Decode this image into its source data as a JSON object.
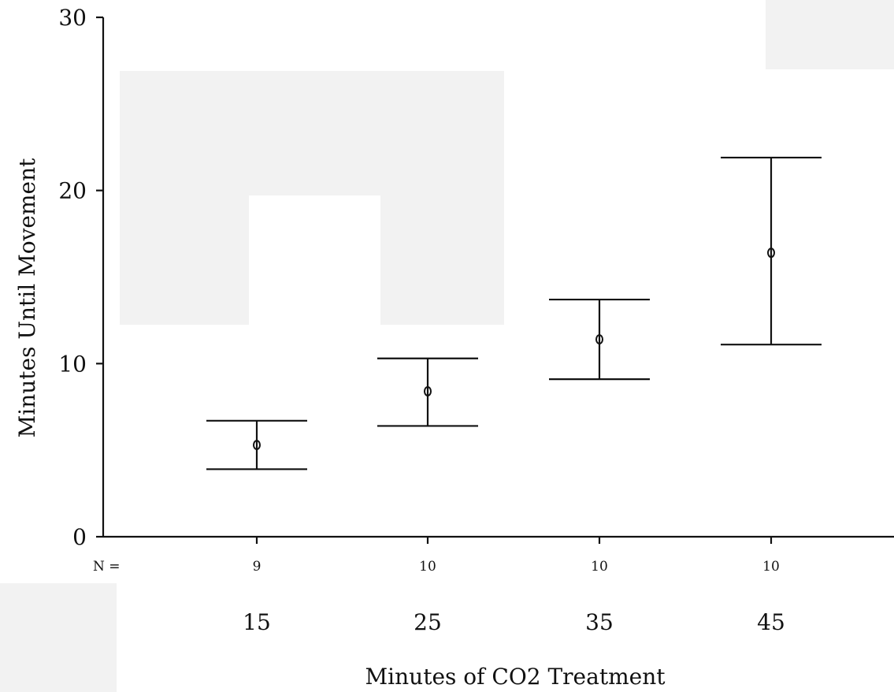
{
  "chart_data": {
    "type": "scatter",
    "subtype": "error-bar",
    "title": "",
    "xlabel": "Minutes of CO2 Treatment",
    "ylabel": "Minutes Until Movement",
    "categories": [
      "15",
      "25",
      "35",
      "45"
    ],
    "n_prefix": "N =",
    "n_values": [
      "9",
      "10",
      "10",
      "10"
    ],
    "y_ticks": [
      0,
      10,
      20,
      30
    ],
    "ylim": [
      0,
      30
    ],
    "grid": false,
    "points": [
      {
        "category": "15",
        "mean": 5.3,
        "lower": 3.9,
        "upper": 6.7
      },
      {
        "category": "25",
        "mean": 8.4,
        "lower": 6.4,
        "upper": 10.3
      },
      {
        "category": "35",
        "mean": 11.4,
        "lower": 9.1,
        "upper": 13.7
      },
      {
        "category": "45",
        "mean": 16.4,
        "lower": 11.1,
        "upper": 21.9
      }
    ]
  }
}
